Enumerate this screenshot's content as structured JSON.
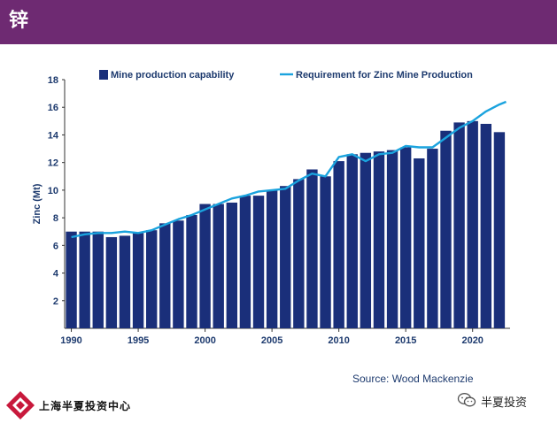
{
  "header": {
    "title": "锌"
  },
  "footer": {
    "org_name": "上海半夏投资中心",
    "wechat_name": "半夏投资",
    "source": "Source: Wood Mackenzie"
  },
  "colors": {
    "header_bg": "#6e2a72",
    "bar": "#1a2f7a",
    "line": "#1aa3de",
    "axis_text": "#1d3a6e"
  },
  "chart_data": {
    "type": "bar",
    "title": "",
    "ylabel": "Zinc (Mt)",
    "ylim": [
      0,
      18
    ],
    "yticks": [
      2,
      4,
      6,
      8,
      10,
      12,
      14,
      16,
      18
    ],
    "xticks": [
      "1990",
      "1995",
      "2000",
      "2005",
      "2010",
      "2015",
      "2020"
    ],
    "legend_position": "top",
    "x": [
      1990,
      1991,
      1992,
      1993,
      1994,
      1995,
      1996,
      1997,
      1998,
      1999,
      2000,
      2001,
      2002,
      2003,
      2004,
      2005,
      2006,
      2007,
      2008,
      2009,
      2010,
      2011,
      2012,
      2013,
      2014,
      2015,
      2016,
      2017,
      2018,
      2019,
      2020,
      2021,
      2022
    ],
    "series": [
      {
        "name": "Mine production capability",
        "kind": "bar",
        "values": [
          7.0,
          7.0,
          7.0,
          6.6,
          6.7,
          6.9,
          7.1,
          7.6,
          7.8,
          8.2,
          9.0,
          9.0,
          9.1,
          9.6,
          9.6,
          10.0,
          10.3,
          10.8,
          11.5,
          11.0,
          12.1,
          12.6,
          12.7,
          12.8,
          12.9,
          13.1,
          12.3,
          13.0,
          14.3,
          14.9,
          15.0,
          14.8,
          14.2
        ]
      },
      {
        "name": "Requirement for Zinc Mine Production",
        "kind": "line",
        "points": [
          [
            1990,
            6.6
          ],
          [
            1991,
            6.8
          ],
          [
            1992,
            6.9
          ],
          [
            1993,
            6.9
          ],
          [
            1994,
            7.0
          ],
          [
            1995,
            6.9
          ],
          [
            1996,
            7.1
          ],
          [
            1997,
            7.5
          ],
          [
            1998,
            7.9
          ],
          [
            1999,
            8.2
          ],
          [
            2000,
            8.6
          ],
          [
            2001,
            9.0
          ],
          [
            2002,
            9.4
          ],
          [
            2003,
            9.6
          ],
          [
            2004,
            9.9
          ],
          [
            2005,
            10.0
          ],
          [
            2006,
            10.1
          ],
          [
            2007,
            10.7
          ],
          [
            2008,
            11.2
          ],
          [
            2009,
            11.0
          ],
          [
            2010,
            12.4
          ],
          [
            2011,
            12.6
          ],
          [
            2012,
            12.1
          ],
          [
            2013,
            12.6
          ],
          [
            2014,
            12.7
          ],
          [
            2015,
            13.2
          ],
          [
            2016,
            13.1
          ],
          [
            2017,
            13.1
          ],
          [
            2018,
            13.8
          ],
          [
            2019,
            14.5
          ],
          [
            2020,
            15.0
          ],
          [
            2021,
            15.7
          ],
          [
            2022,
            16.2
          ],
          [
            2022.5,
            16.4
          ]
        ]
      }
    ]
  }
}
